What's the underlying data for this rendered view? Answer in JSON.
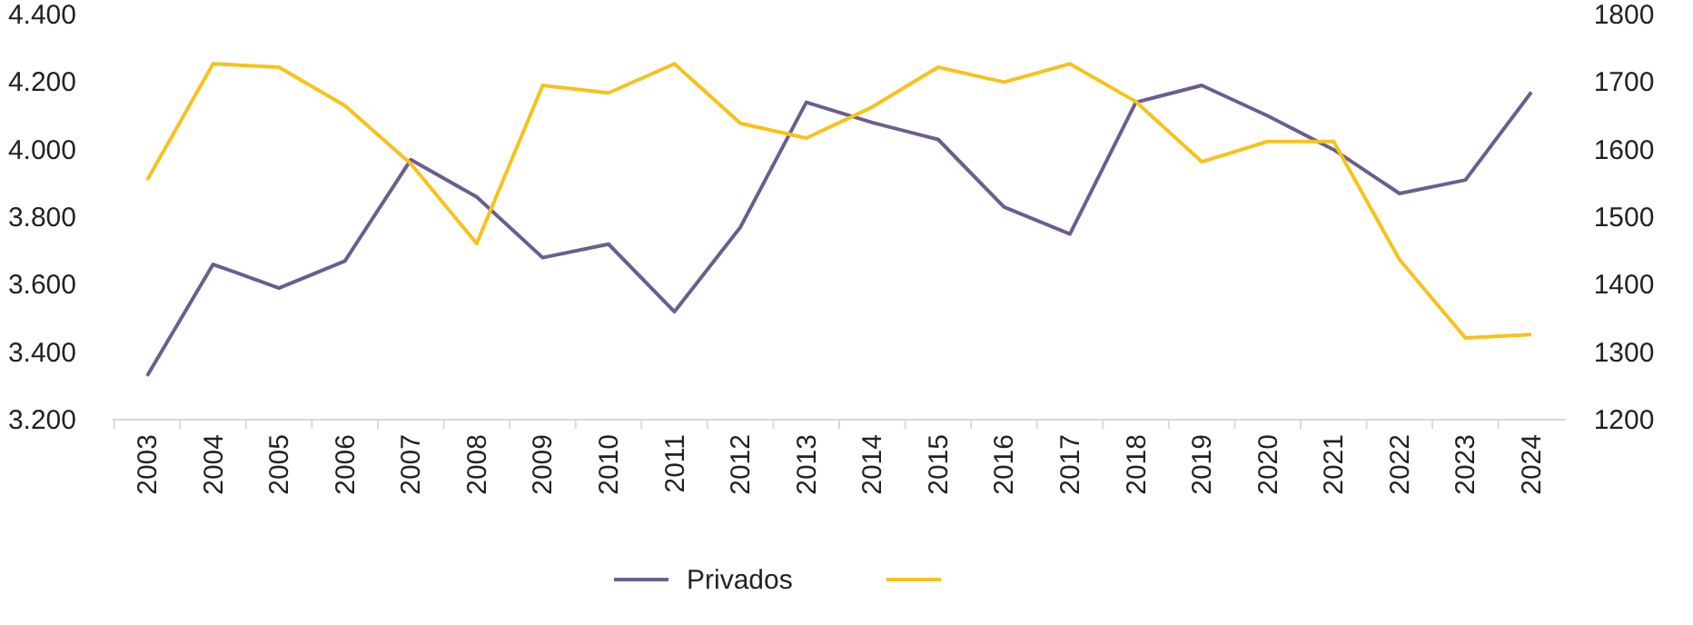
{
  "chart_data": {
    "type": "line",
    "categories": [
      "2003",
      "2004",
      "2005",
      "2006",
      "2007",
      "2008",
      "2009",
      "2010",
      "2011",
      "2012",
      "2013",
      "2014",
      "2015",
      "2016",
      "2017",
      "2018",
      "2019",
      "2020",
      "2021",
      "2022",
      "2023",
      "2024"
    ],
    "series": [
      {
        "name": "Privados",
        "color": "#6b5e8e",
        "values": [
          3330,
          3660,
          3590,
          3670,
          3970,
          3860,
          3680,
          3720,
          3520,
          3770,
          4140,
          4080,
          4030,
          3830,
          3750,
          4140,
          4190,
          4100,
          4000,
          3870,
          3910,
          4170
        ]
      },
      {
        "color": "#f7c21a",
        "axis": "y2",
        "values": [
          1555,
          1727,
          1722,
          1665,
          1579,
          1461,
          1695,
          1684,
          1727,
          1639,
          1617,
          1663,
          1722,
          1700,
          1727,
          1671,
          1582,
          1612,
          1612,
          1437,
          1321,
          1326
        ]
      }
    ],
    "ylim": [
      3200,
      4400
    ],
    "yticks": [
      {
        "value": 3200,
        "label": "3.200"
      },
      {
        "value": 3400,
        "label": "3.400"
      },
      {
        "value": 3600,
        "label": "3.600"
      },
      {
        "value": 3800,
        "label": "3.800"
      },
      {
        "value": 4000,
        "label": "4.000"
      },
      {
        "value": 4200,
        "label": "4.200"
      },
      {
        "value": 4400,
        "label": "4.400"
      }
    ],
    "y2lim": [
      1200,
      1800
    ],
    "y2ticks": [
      1200,
      1300,
      1400,
      1500,
      1600,
      1700,
      1800
    ],
    "legend": "bottom",
    "marker": "none",
    "line_style": "solid"
  }
}
